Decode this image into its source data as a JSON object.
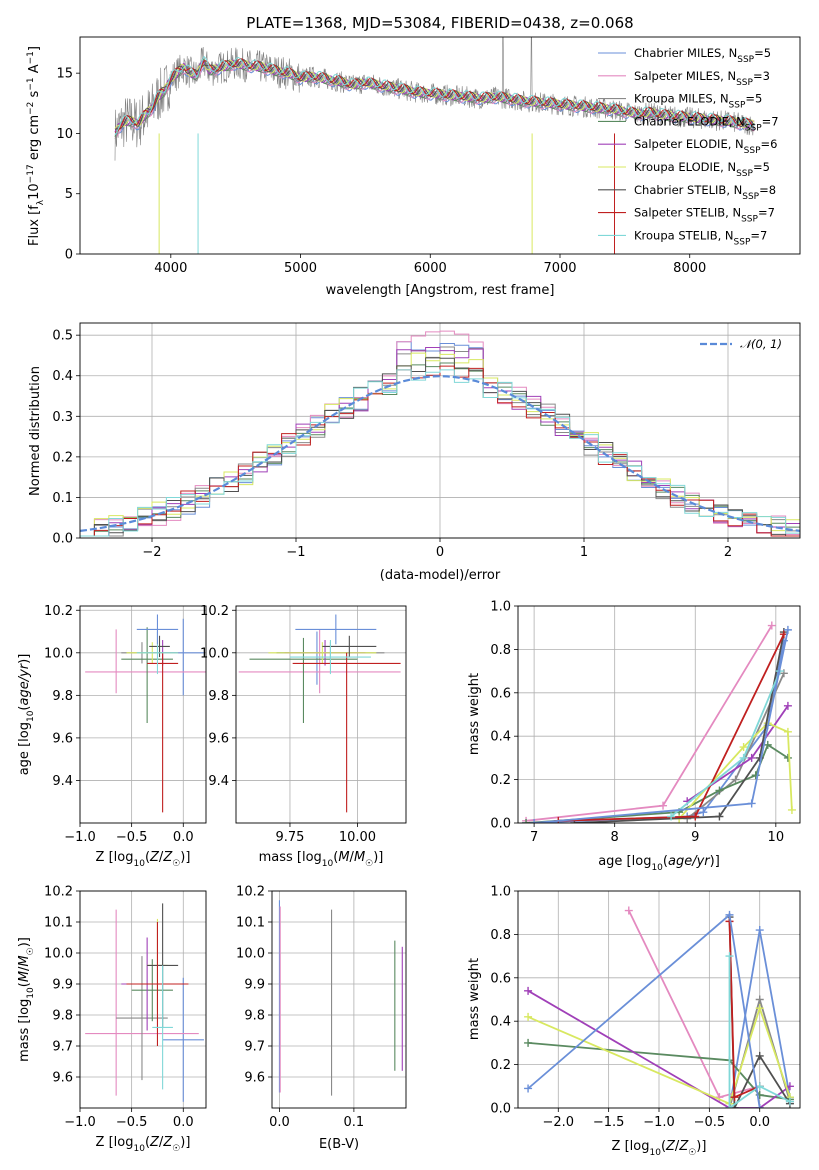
{
  "figure_title": "PLATE=1368, MJD=53084, FIBERID=0438, z=0.068",
  "model_colors": [
    "#6a8fd8",
    "#e48ac0",
    "#8a8a8a",
    "#5a8a60",
    "#a040b8",
    "#d8e860",
    "#505050",
    "#c02020",
    "#80d8d8"
  ],
  "chart_data": [
    {
      "id": "spectrum",
      "type": "line",
      "title": "PLATE=1368, MJD=53084, FIBERID=0438, z=0.068",
      "xlabel": "wavelength [Angstrom, rest frame]",
      "ylabel": "Flux [f_λ 10^-17 erg cm^-2 s^-1 A^-1]",
      "xlim": [
        3300,
        8850
      ],
      "ylim": [
        0,
        18
      ],
      "xticks": [
        4000,
        5000,
        6000,
        7000,
        8000
      ],
      "yticks": [
        0,
        5,
        10,
        15
      ],
      "grid": false,
      "legend_position": "top-right",
      "data_color": "#808080",
      "x": [
        3570,
        3600,
        3650,
        3700,
        3750,
        3800,
        3850,
        3900,
        3950,
        4000,
        4050,
        4100,
        4150,
        4200,
        4250,
        4300,
        4400,
        4500,
        4600,
        4700,
        4800,
        4900,
        5000,
        5100,
        5200,
        5300,
        5400,
        5500,
        5600,
        5700,
        5800,
        5900,
        6000,
        6100,
        6200,
        6300,
        6400,
        6500,
        6600,
        6700,
        6800,
        6900,
        7000,
        7100,
        7200,
        7300,
        7400,
        7500,
        7600,
        7700,
        7800,
        7900,
        8000,
        8100,
        8200,
        8300,
        8400,
        8500
      ],
      "model_y": [
        10.0,
        10.5,
        11.0,
        11.0,
        10.8,
        11.5,
        12.0,
        13.0,
        13.5,
        14.5,
        15.0,
        15.5,
        15.0,
        14.8,
        16.0,
        15.2,
        15.5,
        15.8,
        15.6,
        15.5,
        15.2,
        15.0,
        14.6,
        14.7,
        14.5,
        14.3,
        14.0,
        14.2,
        14.0,
        13.8,
        13.6,
        13.4,
        13.3,
        13.2,
        13.1,
        13.0,
        12.9,
        13.0,
        12.9,
        12.7,
        12.6,
        12.5,
        12.4,
        12.3,
        12.2,
        12.1,
        12.0,
        11.8,
        11.6,
        11.7,
        11.5,
        11.4,
        11.3,
        11.2,
        11.1,
        11.0,
        10.8,
        10.7
      ],
      "series": [
        {
          "name": "Chabrier MILES, N_SSP=5",
          "label_main": "Chabrier MILES, N",
          "label_sub": "SSP",
          "label_tail": "=5"
        },
        {
          "name": "Salpeter MILES, N_SSP=3",
          "label_main": "Salpeter MILES, N",
          "label_sub": "SSP",
          "label_tail": "=3"
        },
        {
          "name": "Kroupa MILES, N_SSP=5",
          "label_main": "Kroupa MILES, N",
          "label_sub": "SSP",
          "label_tail": "=5"
        },
        {
          "name": "Chabrier ELODIE, N_SSP=7",
          "label_main": "Chabrier ELODIE, N",
          "label_sub": "SSP",
          "label_tail": "=7"
        },
        {
          "name": "Salpeter ELODIE, N_SSP=6",
          "label_main": "Salpeter ELODIE, N",
          "label_sub": "SSP",
          "label_tail": "=6"
        },
        {
          "name": "Kroupa ELODIE, N_SSP=5",
          "label_main": "Kroupa ELODIE, N",
          "label_sub": "SSP",
          "label_tail": "=5"
        },
        {
          "name": "Chabrier STELIB, N_SSP=8",
          "label_main": "Chabrier STELIB, N",
          "label_sub": "SSP",
          "label_tail": "=8"
        },
        {
          "name": "Salpeter STELIB, N_SSP=7",
          "label_main": "Salpeter STELIB, N",
          "label_sub": "SSP",
          "label_tail": "=7"
        },
        {
          "name": "Kroupa STELIB, N_SSP=7",
          "label_main": "Kroupa STELIB, N",
          "label_sub": "SSP",
          "label_tail": "=7"
        }
      ]
    },
    {
      "id": "residuals",
      "type": "histogram",
      "xlabel": "(data-model)/error",
      "ylabel": "Normed distribution",
      "xlim": [
        -2.5,
        2.5
      ],
      "ylim": [
        0,
        0.53
      ],
      "xticks": [
        -2,
        -1,
        0,
        1,
        2
      ],
      "yticks": [
        0.0,
        0.1,
        0.2,
        0.3,
        0.4,
        0.5
      ],
      "grid": true,
      "legend_position": "top-right",
      "legend_label": "𝒩(0, 1)",
      "gaussian_color": "#5a8ad8",
      "bin_width": 0.1,
      "bins_start": -2.5,
      "peak_heights": [
        0.47,
        0.5,
        0.46,
        0.42,
        0.45,
        0.44,
        0.43,
        0.41,
        0.4
      ]
    },
    {
      "id": "age_vs_Z",
      "type": "errorbar",
      "xlabel": "Z [log10(Z/Z☉)]",
      "ylabel": "age [log10(age/yr)]",
      "xlim": [
        -1.0,
        0.22
      ],
      "ylim": [
        9.2,
        10.22
      ],
      "xticks": [
        -1.0,
        -0.5,
        0.0
      ],
      "yticks": [
        9.4,
        9.6,
        9.8,
        10.0,
        10.2
      ],
      "grid": true,
      "points": [
        {
          "x": 0.0,
          "y": 10.0,
          "xerr": 0.2,
          "yerr": [
            0.2,
            0.16
          ]
        },
        {
          "x": -0.65,
          "y": 9.91,
          "xerr": [
            0.3,
            0.9
          ],
          "yerr": [
            0.1,
            0.2
          ]
        },
        {
          "x": -0.4,
          "y": 10.0,
          "xerr": 0.2,
          "yerr": 0.05
        },
        {
          "x": -0.35,
          "y": 9.97,
          "xerr": 0.25,
          "yerr": [
            0.3,
            0.15
          ]
        },
        {
          "x": -0.2,
          "y": 10.0,
          "xerr": 0.15,
          "yerr": 0.06
        },
        {
          "x": -0.3,
          "y": 10.0,
          "xerr": 0.25,
          "yerr": 0.05
        },
        {
          "x": -0.23,
          "y": 10.03,
          "xerr": 0.1,
          "yerr": 0.05
        },
        {
          "x": -0.2,
          "y": 9.95,
          "xerr": 0.15,
          "yerr": [
            0.7,
            0.05
          ]
        },
        {
          "x": -0.25,
          "y": 10.0,
          "xerr": 0.2,
          "yerr": 0.1
        },
        {
          "x": -0.25,
          "y": 10.11,
          "xerr": 0.2,
          "yerr": 0.07
        }
      ]
    },
    {
      "id": "age_vs_mass",
      "type": "errorbar",
      "xlabel": "mass [log10(M/M☉)]",
      "ylabel": "",
      "xlim": [
        9.55,
        10.18
      ],
      "ylim": [
        9.2,
        10.22
      ],
      "xticks": [
        9.75,
        10.0
      ],
      "yticks": [
        9.4,
        9.6,
        9.8,
        10.0,
        10.2
      ],
      "grid": true,
      "points": [
        {
          "x": 9.85,
          "y": 10.0,
          "xerr": 0.15,
          "yerr": [
            0.15,
            0.1
          ]
        },
        {
          "x": 9.86,
          "y": 9.91,
          "xerr": 0.3,
          "yerr": [
            0.1,
            0.2
          ]
        },
        {
          "x": 9.9,
          "y": 10.0,
          "xerr": 0.2,
          "yerr": 0.05
        },
        {
          "x": 9.8,
          "y": 9.97,
          "xerr": 0.2,
          "yerr": [
            0.3,
            0.1
          ]
        },
        {
          "x": 9.88,
          "y": 10.0,
          "xerr": 0.15,
          "yerr": 0.06
        },
        {
          "x": 9.87,
          "y": 10.0,
          "xerr": 0.2,
          "yerr": 0.05
        },
        {
          "x": 9.97,
          "y": 10.03,
          "xerr": 0.1,
          "yerr": 0.05
        },
        {
          "x": 9.96,
          "y": 9.95,
          "xerr": 0.2,
          "yerr": [
            0.7,
            0.05
          ]
        },
        {
          "x": 9.9,
          "y": 9.98,
          "xerr": 0.15,
          "yerr": 0.08
        },
        {
          "x": 9.92,
          "y": 10.11,
          "xerr": 0.15,
          "yerr": 0.07
        }
      ]
    },
    {
      "id": "weight_vs_age",
      "type": "line",
      "xlabel": "age [log10(age/yr)]",
      "ylabel": "mass weight",
      "xlim": [
        6.8,
        10.3
      ],
      "ylim": [
        0.0,
        1.0
      ],
      "xticks": [
        7,
        8,
        9,
        10
      ],
      "yticks": [
        0.0,
        0.2,
        0.4,
        0.6,
        0.8,
        1.0
      ],
      "grid": true,
      "series": [
        {
          "x": [
            6.9,
            8.9,
            9.1,
            9.9,
            10.1
          ],
          "y": [
            0.0,
            0.03,
            0.05,
            0.45,
            0.84
          ]
        },
        {
          "x": [
            6.9,
            8.6,
            9.95
          ],
          "y": [
            0.01,
            0.08,
            0.91
          ]
        },
        {
          "x": [
            8.9,
            9.5,
            10.1
          ],
          "y": [
            0.02,
            0.2,
            0.69
          ]
        },
        {
          "x": [
            6.9,
            8.8,
            9.3,
            9.75,
            9.9,
            10.15
          ],
          "y": [
            0.0,
            0.05,
            0.15,
            0.22,
            0.36,
            0.3
          ]
        },
        {
          "x": [
            8.9,
            9.7,
            10.15
          ],
          "y": [
            0.1,
            0.3,
            0.54
          ]
        },
        {
          "x": [
            8.8,
            9.6,
            9.9,
            10.15,
            10.2
          ],
          "y": [
            0.02,
            0.35,
            0.46,
            0.42,
            0.06
          ]
        },
        {
          "x": [
            7.5,
            9.3,
            9.8,
            10.1
          ],
          "y": [
            0.0,
            0.03,
            0.3,
            0.88
          ]
        },
        {
          "x": [
            7.3,
            9.0,
            10.1
          ],
          "y": [
            0.01,
            0.03,
            0.87
          ]
        },
        {
          "x": [
            8.7,
            9.6,
            10.05
          ],
          "y": [
            0.03,
            0.3,
            0.7
          ]
        },
        {
          "x": [
            7.0,
            9.7,
            10.15
          ],
          "y": [
            0.0,
            0.09,
            0.89
          ]
        }
      ]
    },
    {
      "id": "mass_vs_Z",
      "type": "errorbar",
      "xlabel": "Z [log10(Z/Z☉)]",
      "ylabel": "mass [log10(M/M☉)]",
      "xlim": [
        -1.0,
        0.22
      ],
      "ylim": [
        9.5,
        10.2
      ],
      "xticks": [
        -1.0,
        -0.5,
        0.0
      ],
      "yticks": [
        9.6,
        9.7,
        9.8,
        9.9,
        10.0,
        10.1,
        10.2
      ],
      "grid": true,
      "points": [
        {
          "x": 0.0,
          "y": 9.72,
          "xerr": 0.2,
          "yerr": 0.2
        },
        {
          "x": -0.65,
          "y": 9.74,
          "xerr": [
            0.3,
            0.8
          ],
          "yerr": [
            0.2,
            0.4
          ]
        },
        {
          "x": -0.4,
          "y": 9.79,
          "xerr": 0.25,
          "yerr": 0.2
        },
        {
          "x": -0.3,
          "y": 9.88,
          "xerr": 0.2,
          "yerr": 0.1
        },
        {
          "x": -0.35,
          "y": 9.9,
          "xerr": 0.25,
          "yerr": 0.15
        },
        {
          "x": -0.25,
          "y": 9.96,
          "xerr": 0.1,
          "yerr": 0.15
        },
        {
          "x": -0.2,
          "y": 9.96,
          "xerr": 0.15,
          "yerr": 0.2
        },
        {
          "x": -0.25,
          "y": 9.9,
          "xerr": 0.3,
          "yerr": 0.2
        },
        {
          "x": -0.2,
          "y": 9.76,
          "xerr": 0.1,
          "yerr": 0.2
        }
      ]
    },
    {
      "id": "mass_vs_ebv",
      "type": "errorbar",
      "xlabel": "E(B-V)",
      "ylabel": "",
      "xlim": [
        -0.01,
        0.17
      ],
      "ylim": [
        9.5,
        10.2
      ],
      "xticks": [
        0.0,
        0.1
      ],
      "yticks": [
        9.6,
        9.7,
        9.8,
        9.9,
        10.0,
        10.1,
        10.2
      ],
      "grid": true,
      "points": [
        {
          "x": 0.0,
          "y": 9.9,
          "xerr": 0.0,
          "yerr": [
            0.35,
            0.27
          ]
        },
        {
          "x": 0.001,
          "y": 9.85,
          "xerr": 0.0,
          "yerr": 0.3
        },
        {
          "x": 0.07,
          "y": 9.84,
          "xerr": 0.0,
          "yerr": 0.3
        },
        {
          "x": 0.155,
          "y": 9.83,
          "xerr": 0.0,
          "yerr": 0.21
        },
        {
          "x": 0.165,
          "y": 9.82,
          "xerr": 0.0,
          "yerr": 0.2
        }
      ]
    },
    {
      "id": "weight_vs_Z",
      "type": "line",
      "xlabel": "Z [log10(Z/Z☉)]",
      "ylabel": "mass weight",
      "xlim": [
        -2.4,
        0.4
      ],
      "ylim": [
        0.0,
        1.0
      ],
      "xticks": [
        -2.0,
        -1.5,
        -1.0,
        -0.5,
        0.0
      ],
      "yticks": [
        0.0,
        0.2,
        0.4,
        0.6,
        0.8,
        1.0
      ],
      "grid": true,
      "series": [
        {
          "x": [
            -0.3,
            0.0,
            0.3
          ],
          "y": [
            0.0,
            0.82,
            0.05
          ]
        },
        {
          "x": [
            -1.3,
            -0.4,
            0.0
          ],
          "y": [
            0.91,
            0.05,
            0.1
          ]
        },
        {
          "x": [
            -0.3,
            0.0,
            0.3
          ],
          "y": [
            0.0,
            0.5,
            0.03
          ]
        },
        {
          "x": [
            -2.3,
            -0.3,
            0.0,
            0.3
          ],
          "y": [
            0.3,
            0.22,
            0.06,
            0.04
          ]
        },
        {
          "x": [
            -2.3,
            -0.3,
            0.0,
            0.3
          ],
          "y": [
            0.54,
            0.0,
            0.0,
            0.1
          ]
        },
        {
          "x": [
            -2.3,
            -0.3,
            0.0,
            0.3
          ],
          "y": [
            0.42,
            0.02,
            0.46,
            0.05
          ]
        },
        {
          "x": [
            -0.3,
            -0.25,
            0.0,
            0.3
          ],
          "y": [
            0.88,
            0.0,
            0.24,
            0.02
          ]
        },
        {
          "x": [
            -0.3,
            -0.25,
            0.0
          ],
          "y": [
            0.86,
            0.05,
            0.1
          ]
        },
        {
          "x": [
            -0.3,
            -0.3,
            0.0,
            0.3
          ],
          "y": [
            0.7,
            0.0,
            0.1,
            0.03
          ]
        },
        {
          "x": [
            -2.3,
            -0.3,
            0.0
          ],
          "y": [
            0.09,
            0.89,
            0.0
          ]
        }
      ]
    }
  ]
}
